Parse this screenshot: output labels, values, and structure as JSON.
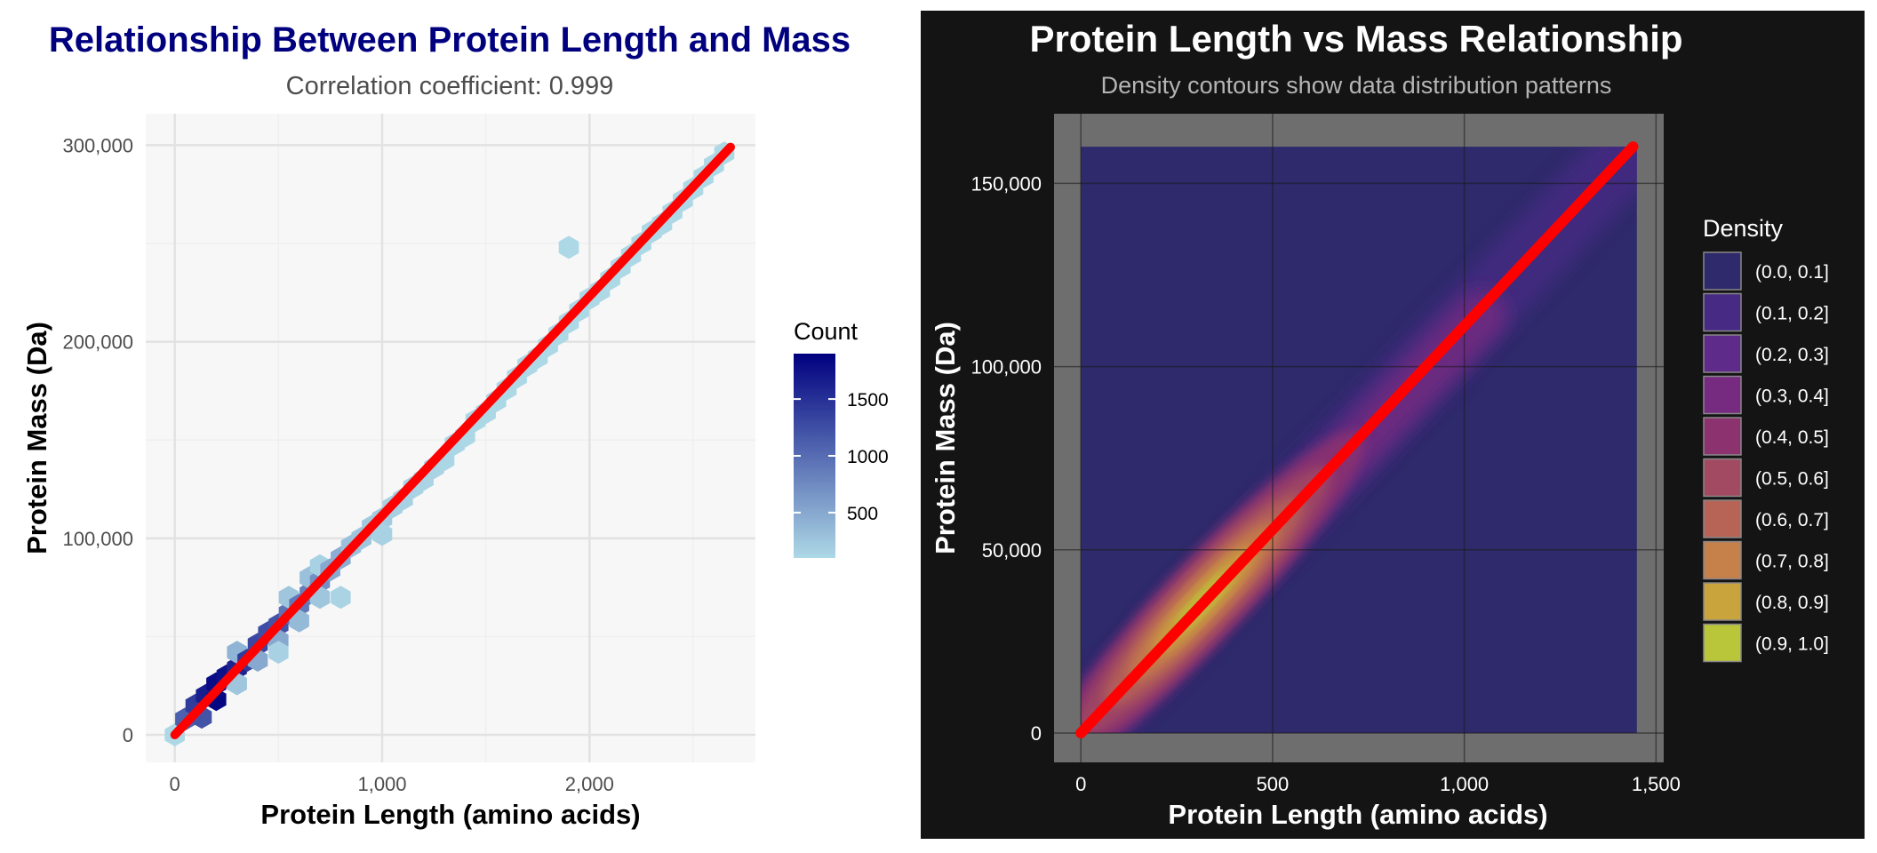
{
  "chart_data": [
    {
      "type": "hexbin",
      "title": "Relationship Between Protein Length and Mass",
      "subtitle": "Correlation coefficient: 0.999",
      "xlabel": "Protein Length (amino acids)",
      "ylabel": "Protein Mass (Da)",
      "xlim": [
        -140,
        2800
      ],
      "ylim": [
        -14000,
        316000
      ],
      "xticks": [
        0,
        1000,
        2000
      ],
      "xtick_labels": [
        "0",
        "1,000",
        "2,000"
      ],
      "yticks": [
        0,
        100000,
        200000,
        300000
      ],
      "ytick_labels": [
        "0",
        "100,000",
        "200,000",
        "300,000"
      ],
      "grid": true,
      "panel_background": "#f7f7f7",
      "title_color": "#00007f",
      "fit_line": {
        "x": [
          0,
          2680
        ],
        "y": [
          0,
          299000
        ],
        "color": "#ff0000"
      },
      "legend": {
        "title": "Count",
        "position": "right",
        "labels": [
          "1500",
          "1000",
          "500"
        ],
        "values": [
          1500,
          1000,
          500
        ],
        "range": [
          100,
          1900
        ],
        "color_low": "#add8e6",
        "color_high": "#00007f"
      },
      "points": [
        {
          "x": 0,
          "y": 0,
          "count": 60
        },
        {
          "x": 50,
          "y": 8000,
          "count": 1100
        },
        {
          "x": 100,
          "y": 15000,
          "count": 1400
        },
        {
          "x": 130,
          "y": 9000,
          "count": 1200
        },
        {
          "x": 150,
          "y": 20000,
          "count": 1650
        },
        {
          "x": 200,
          "y": 18000,
          "count": 1850
        },
        {
          "x": 200,
          "y": 26000,
          "count": 1800
        },
        {
          "x": 250,
          "y": 30000,
          "count": 1750
        },
        {
          "x": 300,
          "y": 34000,
          "count": 1600
        },
        {
          "x": 300,
          "y": 26000,
          "count": 250
        },
        {
          "x": 300,
          "y": 42000,
          "count": 400
        },
        {
          "x": 350,
          "y": 38000,
          "count": 1400
        },
        {
          "x": 400,
          "y": 46000,
          "count": 1300
        },
        {
          "x": 400,
          "y": 38000,
          "count": 500
        },
        {
          "x": 450,
          "y": 52000,
          "count": 1250
        },
        {
          "x": 500,
          "y": 56000,
          "count": 1200
        },
        {
          "x": 500,
          "y": 48000,
          "count": 500
        },
        {
          "x": 500,
          "y": 42000,
          "count": 150
        },
        {
          "x": 550,
          "y": 62000,
          "count": 950
        },
        {
          "x": 550,
          "y": 70000,
          "count": 250
        },
        {
          "x": 600,
          "y": 66000,
          "count": 900
        },
        {
          "x": 600,
          "y": 58000,
          "count": 350
        },
        {
          "x": 650,
          "y": 72000,
          "count": 850
        },
        {
          "x": 650,
          "y": 80000,
          "count": 300
        },
        {
          "x": 700,
          "y": 78000,
          "count": 700
        },
        {
          "x": 700,
          "y": 70000,
          "count": 250
        },
        {
          "x": 700,
          "y": 86000,
          "count": 150
        },
        {
          "x": 750,
          "y": 84000,
          "count": 500
        },
        {
          "x": 800,
          "y": 90000,
          "count": 450
        },
        {
          "x": 800,
          "y": 70000,
          "count": 130
        },
        {
          "x": 850,
          "y": 96000,
          "count": 300
        },
        {
          "x": 900,
          "y": 100000,
          "count": 250
        },
        {
          "x": 950,
          "y": 106000,
          "count": 220
        },
        {
          "x": 1000,
          "y": 110000,
          "count": 200
        },
        {
          "x": 1000,
          "y": 102000,
          "count": 150
        },
        {
          "x": 1050,
          "y": 116000,
          "count": 160
        },
        {
          "x": 1100,
          "y": 120000,
          "count": 150
        },
        {
          "x": 1150,
          "y": 126000,
          "count": 140
        },
        {
          "x": 1200,
          "y": 130000,
          "count": 130
        },
        {
          "x": 1250,
          "y": 136000,
          "count": 130
        },
        {
          "x": 1300,
          "y": 140000,
          "count": 120
        },
        {
          "x": 1350,
          "y": 148000,
          "count": 120
        },
        {
          "x": 1400,
          "y": 152000,
          "count": 110
        },
        {
          "x": 1450,
          "y": 160000,
          "count": 110
        },
        {
          "x": 1500,
          "y": 164000,
          "count": 110
        },
        {
          "x": 1550,
          "y": 170000,
          "count": 110
        },
        {
          "x": 1600,
          "y": 176000,
          "count": 100
        },
        {
          "x": 1650,
          "y": 182000,
          "count": 100
        },
        {
          "x": 1700,
          "y": 188000,
          "count": 100
        },
        {
          "x": 1750,
          "y": 192000,
          "count": 100
        },
        {
          "x": 1800,
          "y": 198000,
          "count": 100
        },
        {
          "x": 1850,
          "y": 204000,
          "count": 100
        },
        {
          "x": 1900,
          "y": 210000,
          "count": 100
        },
        {
          "x": 1950,
          "y": 216000,
          "count": 100
        },
        {
          "x": 2000,
          "y": 222000,
          "count": 100
        },
        {
          "x": 2050,
          "y": 226000,
          "count": 100
        },
        {
          "x": 2100,
          "y": 232000,
          "count": 100
        },
        {
          "x": 2150,
          "y": 238000,
          "count": 100
        },
        {
          "x": 2200,
          "y": 244000,
          "count": 100
        },
        {
          "x": 2250,
          "y": 250000,
          "count": 100
        },
        {
          "x": 2300,
          "y": 256000,
          "count": 100
        },
        {
          "x": 2350,
          "y": 260000,
          "count": 100
        },
        {
          "x": 2400,
          "y": 266000,
          "count": 100
        },
        {
          "x": 2450,
          "y": 272000,
          "count": 100
        },
        {
          "x": 2500,
          "y": 278000,
          "count": 100
        },
        {
          "x": 2550,
          "y": 284000,
          "count": 100
        },
        {
          "x": 2600,
          "y": 290000,
          "count": 100
        },
        {
          "x": 2650,
          "y": 296000,
          "count": 100
        },
        {
          "x": 1900,
          "y": 248000,
          "count": 100
        }
      ]
    },
    {
      "type": "density",
      "title": "Protein Length vs Mass Relationship",
      "subtitle": "Density contours show data distribution patterns",
      "xlabel": "Protein Length (amino acids)",
      "ylabel": "Protein Mass (Da)",
      "xlim": [
        -70,
        1520
      ],
      "ylim": [
        -8000,
        169000
      ],
      "xticks": [
        0,
        500,
        1000,
        1500
      ],
      "xtick_labels": [
        "0",
        "500",
        "1,000",
        "1,500"
      ],
      "yticks": [
        0,
        50000,
        100000,
        150000
      ],
      "ytick_labels": [
        "0",
        "50,000",
        "100,000",
        "150,000"
      ],
      "grid": true,
      "background": "#141414",
      "panel_background": "#6e6e6e",
      "density_fill_rect": {
        "x": [
          0,
          1450
        ],
        "y": [
          0,
          160000
        ],
        "color": "#2e2a6b"
      },
      "fit_line": {
        "x": [
          0,
          1440
        ],
        "y": [
          0,
          160000
        ],
        "color": "#ff0000"
      },
      "density_ridge": {
        "x": [
          0,
          1440
        ],
        "y": [
          0,
          160000
        ],
        "peak_x": 320,
        "peak_y": 36000
      },
      "legend": {
        "title": "Density",
        "position": "right",
        "labels": [
          "(0.0, 0.1]",
          "(0.1, 0.2]",
          "(0.2, 0.3]",
          "(0.3, 0.4]",
          "(0.4, 0.5]",
          "(0.5, 0.6]",
          "(0.6, 0.7]",
          "(0.7, 0.8]",
          "(0.8, 0.9]",
          "(0.9, 1.0]"
        ],
        "colors": [
          "#2e2a6b",
          "#472a84",
          "#5f2b8a",
          "#762b80",
          "#8c336f",
          "#a24a62",
          "#b76456",
          "#c6804a",
          "#c9a43d",
          "#b9c63a"
        ]
      }
    }
  ]
}
